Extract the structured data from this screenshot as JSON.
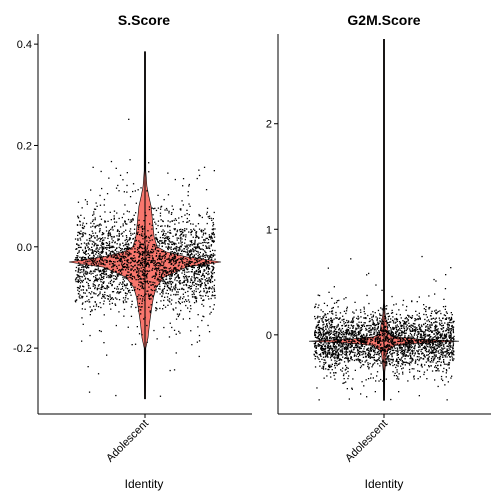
{
  "chart_data": [
    {
      "type": "violin",
      "title": "S.Score",
      "xlabel": "Identity",
      "ylabel": "",
      "categories": [
        "Adolescent"
      ],
      "ylim": [
        -0.33,
        0.42
      ],
      "y_ticks": [
        0.4,
        0.2,
        0.0,
        -0.2
      ],
      "y_tick_labels": [
        "0.4",
        "0.2",
        "0.0",
        "-0.2"
      ],
      "series": [
        {
          "category": "Adolescent",
          "fill_color": "#F8766D",
          "jitter_color": "#000000",
          "min": -0.3,
          "max": 0.385,
          "bulk_center": -0.03,
          "bulk_low": -0.12,
          "bulk_high": 0.06,
          "density_profile": [
            {
              "y": -0.3,
              "w": 0.0
            },
            {
              "y": -0.2,
              "w": 0.01
            },
            {
              "y": -0.18,
              "w": 0.04
            },
            {
              "y": -0.15,
              "w": 0.06
            },
            {
              "y": -0.12,
              "w": 0.09
            },
            {
              "y": -0.1,
              "w": 0.11
            },
            {
              "y": -0.08,
              "w": 0.15
            },
            {
              "y": -0.06,
              "w": 0.25
            },
            {
              "y": -0.04,
              "w": 0.55
            },
            {
              "y": -0.035,
              "w": 0.8
            },
            {
              "y": -0.03,
              "w": 1.0
            },
            {
              "y": -0.025,
              "w": 0.8
            },
            {
              "y": -0.02,
              "w": 0.55
            },
            {
              "y": -0.01,
              "w": 0.28
            },
            {
              "y": 0.0,
              "w": 0.16
            },
            {
              "y": 0.02,
              "w": 0.12
            },
            {
              "y": 0.05,
              "w": 0.1
            },
            {
              "y": 0.08,
              "w": 0.08
            },
            {
              "y": 0.1,
              "w": 0.05
            },
            {
              "y": 0.12,
              "w": 0.025
            },
            {
              "y": 0.15,
              "w": 0.01
            },
            {
              "y": 0.28,
              "w": 0.005
            },
            {
              "y": 0.385,
              "w": 0.0
            }
          ]
        }
      ]
    },
    {
      "type": "violin",
      "title": "G2M.Score",
      "xlabel": "Identity",
      "ylabel": "",
      "categories": [
        "Adolescent"
      ],
      "ylim": [
        -0.75,
        2.85
      ],
      "y_ticks": [
        2,
        1,
        0
      ],
      "y_tick_labels": [
        "2",
        "1",
        "0"
      ],
      "series": [
        {
          "category": "Adolescent",
          "fill_color": "#F8766D",
          "jitter_color": "#000000",
          "min": -0.62,
          "max": 2.8,
          "bulk_center": -0.06,
          "bulk_low": -0.22,
          "bulk_high": 0.3,
          "density_profile": [
            {
              "y": -0.62,
              "w": 0.0
            },
            {
              "y": -0.35,
              "w": 0.01
            },
            {
              "y": -0.2,
              "w": 0.03
            },
            {
              "y": -0.15,
              "w": 0.05
            },
            {
              "y": -0.1,
              "w": 0.15
            },
            {
              "y": -0.08,
              "w": 0.45
            },
            {
              "y": -0.06,
              "w": 1.0
            },
            {
              "y": -0.04,
              "w": 0.45
            },
            {
              "y": -0.02,
              "w": 0.15
            },
            {
              "y": 0.0,
              "w": 0.07
            },
            {
              "y": 0.05,
              "w": 0.05
            },
            {
              "y": 0.1,
              "w": 0.04
            },
            {
              "y": 0.15,
              "w": 0.025
            },
            {
              "y": 0.2,
              "w": 0.015
            },
            {
              "y": 0.3,
              "w": 0.005
            },
            {
              "y": 1.0,
              "w": 0.003
            },
            {
              "y": 2.8,
              "w": 0.0
            }
          ]
        }
      ]
    }
  ]
}
